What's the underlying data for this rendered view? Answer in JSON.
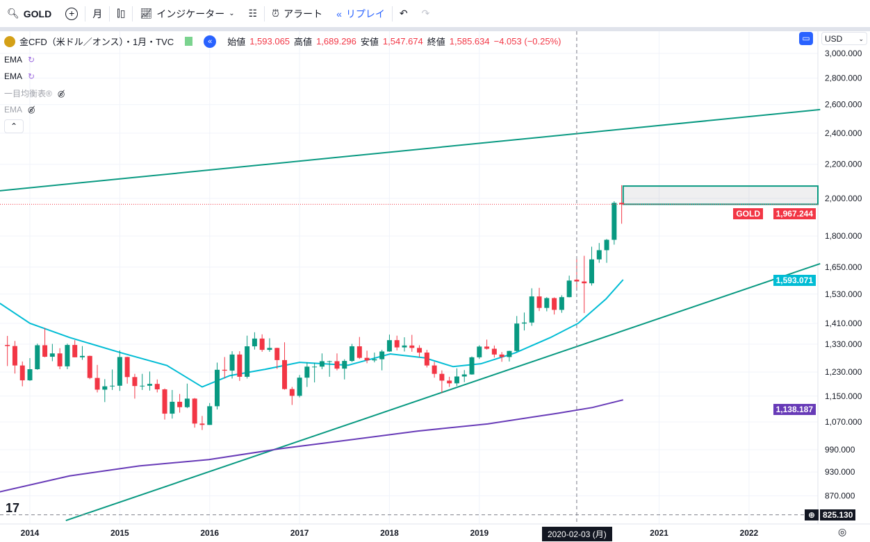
{
  "toolbar": {
    "symbol": "GOLD",
    "interval": "月",
    "indicators": "インジケーター",
    "alert": "アラート",
    "replay": "リプレイ"
  },
  "legend": {
    "title": "金CFD（米ドル／オンス）・1月・TVC",
    "open_label": "始値",
    "open": "1,593.065",
    "high_label": "高値",
    "high": "1,689.296",
    "low_label": "安値",
    "low": "1,547.674",
    "close_label": "終値",
    "close": "1,585.634",
    "change": "−4.053 (−0.25%)"
  },
  "indicators": [
    "EMA",
    "EMA",
    "一目均衡表®",
    "EMA"
  ],
  "currency": "USD",
  "colors": {
    "up": "#089981",
    "down": "#f23645",
    "ema_fast": "#00bcd4",
    "ema_slow": "#673ab7",
    "trend": "#089981"
  },
  "price_axis": [
    "3,000.000",
    "2,800.000",
    "2,600.000",
    "2,400.000",
    "2,200.000",
    "2,000.000",
    "1,800.000",
    "1,650.000",
    "1,530.000",
    "1,410.000",
    "1,330.000",
    "1,230.000",
    "1,150.000",
    "1,070.000",
    "990.000",
    "930.000",
    "870.000"
  ],
  "price_ticks": [
    3000,
    2800,
    2600,
    2400,
    2200,
    2000,
    1800,
    1650,
    1530,
    1410,
    1330,
    1230,
    1150,
    1070,
    990,
    930,
    870
  ],
  "time_axis": [
    {
      "label": "2014",
      "m": 0
    },
    {
      "label": "2015",
      "m": 12
    },
    {
      "label": "2016",
      "m": 24
    },
    {
      "label": "2017",
      "m": 36
    },
    {
      "label": "2018",
      "m": 48
    },
    {
      "label": "2019",
      "m": 60
    },
    {
      "label": "2021",
      "m": 84
    },
    {
      "label": "2022",
      "m": 96
    }
  ],
  "crosshair": {
    "date": "2020-02-03 (月)",
    "m": 73,
    "price": "825.130",
    "price_value": 825.13
  },
  "tags": {
    "gold_label": "GOLD",
    "gold_price": "1,967.244",
    "gold_value": 1967.244,
    "ema_fast": "1,593.071",
    "ema_fast_value": 1593.071,
    "ema_slow": "1,138.187",
    "ema_slow_value": 1138.187
  },
  "chart_data": {
    "type": "candlestick",
    "start_month": -3,
    "candles": [
      [
        1327,
        1361,
        1251,
        1323
      ],
      [
        1323,
        1342,
        1225,
        1253
      ],
      [
        1253,
        1267,
        1182,
        1202
      ],
      [
        1202,
        1279,
        1200,
        1240
      ],
      [
        1240,
        1332,
        1238,
        1326
      ],
      [
        1326,
        1392,
        1282,
        1284
      ],
      [
        1284,
        1331,
        1268,
        1296
      ],
      [
        1296,
        1315,
        1240,
        1250
      ],
      [
        1250,
        1332,
        1240,
        1327
      ],
      [
        1327,
        1345,
        1282,
        1282
      ],
      [
        1282,
        1323,
        1273,
        1287
      ],
      [
        1287,
        1288,
        1206,
        1210
      ],
      [
        1210,
        1255,
        1162,
        1171
      ],
      [
        1171,
        1206,
        1131,
        1182
      ],
      [
        1182,
        1239,
        1170,
        1184
      ],
      [
        1184,
        1307,
        1167,
        1283
      ],
      [
        1283,
        1284,
        1191,
        1213
      ],
      [
        1213,
        1224,
        1142,
        1183
      ],
      [
        1183,
        1224,
        1170,
        1184
      ],
      [
        1184,
        1232,
        1168,
        1190
      ],
      [
        1190,
        1205,
        1162,
        1172
      ],
      [
        1172,
        1175,
        1077,
        1095
      ],
      [
        1095,
        1170,
        1080,
        1132
      ],
      [
        1132,
        1157,
        1098,
        1115
      ],
      [
        1115,
        1191,
        1112,
        1142
      ],
      [
        1142,
        1144,
        1053,
        1065
      ],
      [
        1065,
        1088,
        1046,
        1061
      ],
      [
        1061,
        1128,
        1061,
        1118
      ],
      [
        1118,
        1263,
        1108,
        1238
      ],
      [
        1238,
        1283,
        1208,
        1235
      ],
      [
        1235,
        1304,
        1208,
        1292
      ],
      [
        1292,
        1304,
        1200,
        1214
      ],
      [
        1214,
        1362,
        1208,
        1322
      ],
      [
        1322,
        1375,
        1310,
        1351
      ],
      [
        1351,
        1367,
        1302,
        1309
      ],
      [
        1309,
        1352,
        1302,
        1316
      ],
      [
        1316,
        1317,
        1241,
        1272
      ],
      [
        1272,
        1337,
        1171,
        1173
      ],
      [
        1173,
        1180,
        1122,
        1151
      ],
      [
        1151,
        1220,
        1146,
        1211
      ],
      [
        1211,
        1264,
        1180,
        1249
      ],
      [
        1249,
        1262,
        1195,
        1249
      ],
      [
        1249,
        1296,
        1240,
        1268
      ],
      [
        1268,
        1270,
        1214,
        1268
      ],
      [
        1268,
        1296,
        1236,
        1242
      ],
      [
        1242,
        1275,
        1205,
        1269
      ],
      [
        1269,
        1331,
        1265,
        1322
      ],
      [
        1322,
        1357,
        1276,
        1280
      ],
      [
        1280,
        1306,
        1261,
        1271
      ],
      [
        1271,
        1299,
        1264,
        1275
      ],
      [
        1275,
        1309,
        1236,
        1303
      ],
      [
        1303,
        1366,
        1302,
        1345
      ],
      [
        1345,
        1362,
        1307,
        1318
      ],
      [
        1318,
        1356,
        1303,
        1325
      ],
      [
        1325,
        1365,
        1302,
        1316
      ],
      [
        1316,
        1326,
        1282,
        1299
      ],
      [
        1299,
        1309,
        1246,
        1253
      ],
      [
        1253,
        1266,
        1211,
        1224
      ],
      [
        1224,
        1236,
        1160,
        1201
      ],
      [
        1201,
        1214,
        1180,
        1192
      ],
      [
        1192,
        1243,
        1183,
        1215
      ],
      [
        1215,
        1237,
        1196,
        1222
      ],
      [
        1222,
        1285,
        1221,
        1282
      ],
      [
        1282,
        1326,
        1276,
        1321
      ],
      [
        1321,
        1347,
        1310,
        1313
      ],
      [
        1313,
        1325,
        1281,
        1292
      ],
      [
        1292,
        1301,
        1266,
        1283
      ],
      [
        1283,
        1306,
        1267,
        1305
      ],
      [
        1305,
        1439,
        1301,
        1409
      ],
      [
        1409,
        1453,
        1382,
        1413
      ],
      [
        1413,
        1555,
        1400,
        1520
      ],
      [
        1520,
        1557,
        1459,
        1472
      ],
      [
        1472,
        1517,
        1458,
        1513
      ],
      [
        1513,
        1516,
        1445,
        1464
      ],
      [
        1464,
        1525,
        1452,
        1517
      ],
      [
        1517,
        1611,
        1516,
        1589
      ],
      [
        1593,
        1689,
        1547,
        1585
      ],
      [
        1585,
        1703,
        1451,
        1577
      ],
      [
        1577,
        1747,
        1567,
        1686
      ],
      [
        1686,
        1765,
        1670,
        1730
      ],
      [
        1730,
        1785,
        1670,
        1781
      ],
      [
        1781,
        1984,
        1757,
        1975
      ],
      [
        1975,
        2075,
        1863,
        1967
      ]
    ],
    "ema_fast": [
      [
        -4,
        1491
      ],
      [
        0,
        1410
      ],
      [
        5.3,
        1355
      ],
      [
        12.2,
        1298
      ],
      [
        18.3,
        1253
      ],
      [
        23,
        1180
      ],
      [
        26.7,
        1218
      ],
      [
        31.3,
        1239
      ],
      [
        36,
        1264
      ],
      [
        42.5,
        1254
      ],
      [
        48.1,
        1294
      ],
      [
        52.7,
        1280
      ],
      [
        56.5,
        1249
      ],
      [
        60.2,
        1259
      ],
      [
        64.8,
        1298
      ],
      [
        69.5,
        1355
      ],
      [
        73.2,
        1410
      ],
      [
        76.9,
        1509
      ],
      [
        79.2,
        1593
      ]
    ],
    "ema_slow": [
      [
        -4,
        880
      ],
      [
        5.3,
        920
      ],
      [
        14.6,
        946
      ],
      [
        23.9,
        963
      ],
      [
        33.2,
        992
      ],
      [
        42.5,
        1017
      ],
      [
        51.8,
        1043
      ],
      [
        61.1,
        1064
      ],
      [
        70.4,
        1096
      ],
      [
        75.1,
        1114
      ],
      [
        79.2,
        1138
      ]
    ],
    "trendlines": [
      [
        [
          -4,
          2043
        ],
        [
          105.5,
          2564
        ]
      ],
      [
        [
          4.8,
          812
        ],
        [
          105.5,
          1666
        ]
      ]
    ],
    "zone": {
      "from_m": 79.2,
      "low": 1967,
      "high": 2070
    },
    "scale": "log"
  }
}
